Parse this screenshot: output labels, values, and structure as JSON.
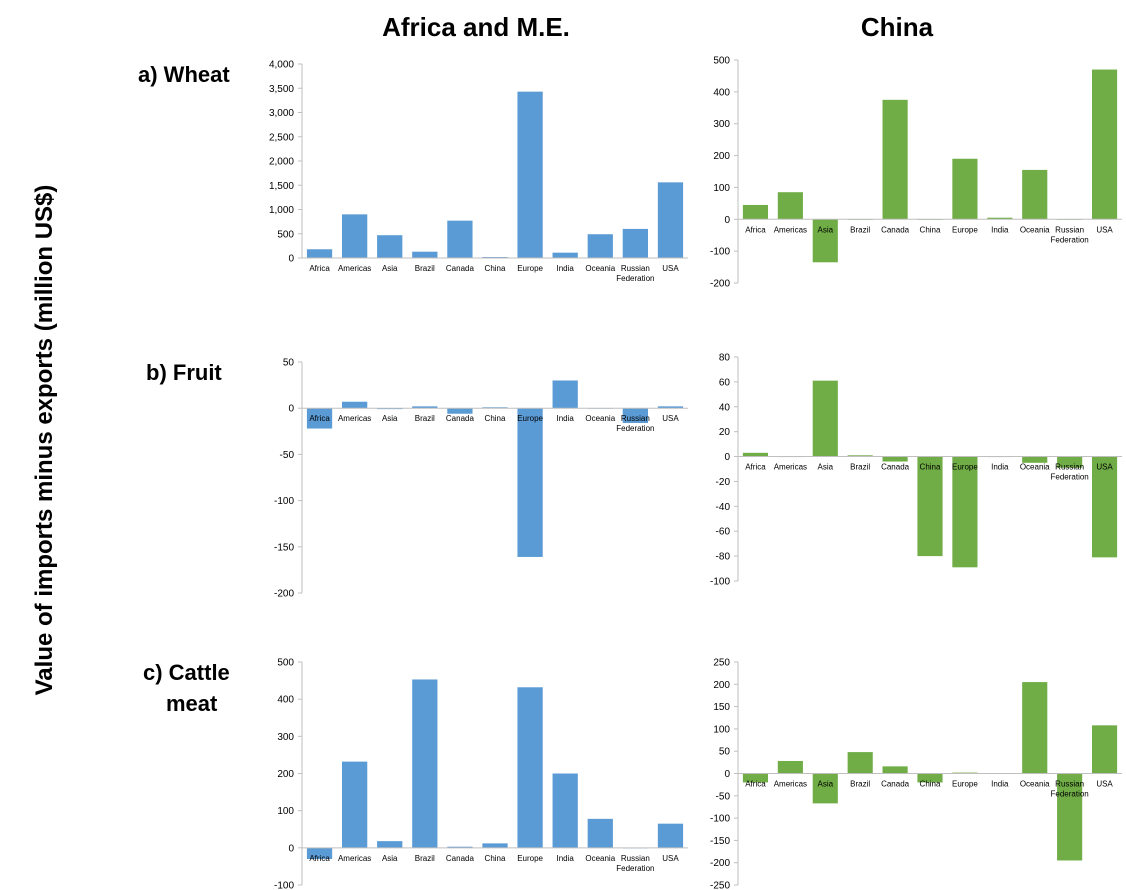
{
  "figure": {
    "y_axis_title": "Value of imports minus exports (million US$)",
    "column_titles": [
      "Africa and M.E.",
      "China"
    ],
    "row_titles": [
      [
        "a) Wheat"
      ],
      [
        "b) Fruit"
      ],
      [
        "c) Cattle",
        "meat"
      ]
    ]
  },
  "chart_data": [
    {
      "type": "bar",
      "title": "",
      "categories": [
        "Africa",
        "Americas",
        "Asia",
        "Brazil",
        "Canada",
        "China",
        "Europe",
        "India",
        "Oceania",
        "Russian Federation",
        "USA"
      ],
      "values": [
        180,
        900,
        470,
        130,
        770,
        20,
        3430,
        110,
        490,
        600,
        1560
      ],
      "ylim": [
        0,
        4000
      ],
      "yticks": [
        0,
        500,
        1000,
        1500,
        2000,
        2500,
        3000,
        3500,
        4000
      ],
      "ytick_labels": [
        "0",
        "500",
        "1,000",
        "1,500",
        "2,000",
        "2,500",
        "3,000",
        "3,500",
        "4,000"
      ],
      "color": "#5b9bd5"
    },
    {
      "type": "bar",
      "title": "",
      "categories": [
        "Africa",
        "Americas",
        "Asia",
        "Brazil",
        "Canada",
        "China",
        "Europe",
        "India",
        "Oceania",
        "Russian Federation",
        "USA"
      ],
      "values": [
        45,
        85,
        -135,
        0,
        375,
        0,
        190,
        5,
        155,
        0,
        470
      ],
      "ylim": [
        -200,
        500
      ],
      "yticks": [
        -200,
        -100,
        0,
        100,
        200,
        300,
        400,
        500
      ],
      "ytick_labels": [
        "-200",
        "-100",
        "0",
        "100",
        "200",
        "300",
        "400",
        "500"
      ],
      "color": "#70ad47"
    },
    {
      "type": "bar",
      "title": "",
      "categories": [
        "Africa",
        "Americas",
        "Asia",
        "Brazil",
        "Canada",
        "China",
        "Europe",
        "India",
        "Oceania",
        "Russian Federation",
        "USA"
      ],
      "values": [
        -22,
        7,
        -1,
        2,
        -6,
        1,
        -161,
        30,
        0,
        -16,
        2
      ],
      "ylim": [
        -200,
        50
      ],
      "yticks": [
        -200,
        -150,
        -100,
        -50,
        0,
        50
      ],
      "ytick_labels": [
        "-200",
        "-150",
        "-100",
        "-50",
        "0",
        "50"
      ],
      "color": "#5b9bd5"
    },
    {
      "type": "bar",
      "title": "",
      "categories": [
        "Africa",
        "Americas",
        "Asia",
        "Brazil",
        "Canada",
        "China",
        "Europe",
        "India",
        "Oceania",
        "Russian Federation",
        "USA"
      ],
      "values": [
        3,
        0,
        61,
        1,
        -4,
        -80,
        -89,
        0,
        -5,
        -9,
        -81
      ],
      "ylim": [
        -100,
        80
      ],
      "yticks": [
        -100,
        -80,
        -60,
        -40,
        -20,
        0,
        20,
        40,
        60,
        80
      ],
      "ytick_labels": [
        "-100",
        "-80",
        "-60",
        "-40",
        "-20",
        "0",
        "20",
        "40",
        "60",
        "80"
      ],
      "color": "#70ad47"
    },
    {
      "type": "bar",
      "title": "",
      "categories": [
        "Africa",
        "Americas",
        "Asia",
        "Brazil",
        "Canada",
        "China",
        "Europe",
        "India",
        "Oceania",
        "Russian Federation",
        "USA"
      ],
      "values": [
        -30,
        232,
        18,
        453,
        3,
        12,
        432,
        200,
        78,
        0,
        65
      ],
      "ylim": [
        -100,
        500
      ],
      "yticks": [
        -100,
        0,
        100,
        200,
        300,
        400,
        500
      ],
      "ytick_labels": [
        "-100",
        "0",
        "100",
        "200",
        "300",
        "400",
        "500"
      ],
      "color": "#5b9bd5"
    },
    {
      "type": "bar",
      "title": "",
      "categories": [
        "Africa",
        "Americas",
        "Asia",
        "Brazil",
        "Canada",
        "China",
        "Europe",
        "India",
        "Oceania",
        "Russian Federation",
        "USA"
      ],
      "values": [
        -20,
        28,
        -67,
        48,
        16,
        -20,
        2,
        0,
        205,
        -195,
        108
      ],
      "ylim": [
        -250,
        250
      ],
      "yticks": [
        -250,
        -200,
        -150,
        -100,
        -50,
        0,
        50,
        100,
        150,
        200,
        250
      ],
      "ytick_labels": [
        "-250",
        "-200",
        "-150",
        "-100",
        "-50",
        "0",
        "50",
        "100",
        "150",
        "200",
        "250"
      ],
      "color": "#70ad47"
    }
  ]
}
